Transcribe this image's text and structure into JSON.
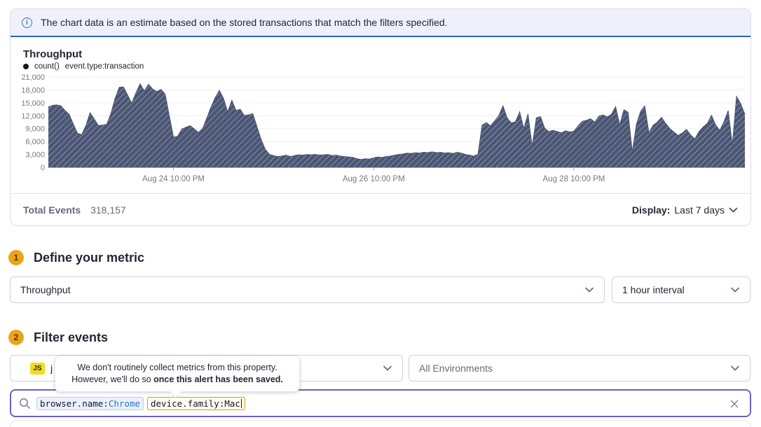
{
  "banner": {
    "text": "The chart data is an estimate based on the stored transactions that match the filters specified."
  },
  "chart": {
    "title": "Throughput",
    "legend_aggregate": "count()",
    "legend_filter": "event.type:transaction"
  },
  "chart_data": {
    "type": "area",
    "title": "Throughput",
    "series_name": "count() event.type:transaction",
    "ylim": [
      0,
      21000
    ],
    "yticks": [
      0,
      3000,
      6000,
      9000,
      12000,
      15000,
      18000,
      21000
    ],
    "ytick_labels": [
      "0",
      "3,000",
      "6,000",
      "9,000",
      "12,000",
      "15,000",
      "18,000",
      "21,000"
    ],
    "xticks": [
      {
        "label": "Aug 24 10:00 PM",
        "index": 30
      },
      {
        "label": "Aug 26 10:00 PM",
        "index": 78
      },
      {
        "label": "Aug 28 10:00 PM",
        "index": 126
      }
    ],
    "x_unit": "1 hour interval over last 7 days",
    "grid": true,
    "fill_style": "diagonal-hatch",
    "fill_color": "#4a5674",
    "hatch_color": "#b7bccb",
    "values": [
      14000,
      14400,
      14500,
      14300,
      13200,
      12300,
      10000,
      7900,
      7600,
      9700,
      12700,
      11200,
      9700,
      9800,
      10000,
      12500,
      16000,
      18600,
      18700,
      16800,
      14900,
      17300,
      19400,
      17800,
      19300,
      18200,
      17600,
      18100,
      17000,
      12000,
      7000,
      7200,
      8900,
      9300,
      9700,
      8900,
      8100,
      9000,
      11500,
      14000,
      16200,
      17900,
      16000,
      12900,
      15600,
      13200,
      13500,
      12000,
      12200,
      12500,
      9500,
      6500,
      4200,
      3000,
      2700,
      2500,
      2600,
      2800,
      2500,
      2700,
      2900,
      2800,
      3000,
      2900,
      3000,
      2800,
      2900,
      3000,
      2700,
      2800,
      2600,
      2500,
      2400,
      2300,
      2000,
      1800,
      2000,
      1900,
      2200,
      2400,
      2300,
      2500,
      2600,
      2800,
      3000,
      3100,
      3300,
      3200,
      3400,
      3300,
      3500,
      3400,
      3600,
      3400,
      3500,
      3300,
      3400,
      3200,
      3500,
      3300,
      3000,
      2800,
      2600,
      3000,
      9800,
      10400,
      9600,
      10800,
      12000,
      14300,
      11500,
      10300,
      10600,
      12900,
      9000,
      12400,
      4900,
      11500,
      11800,
      9100,
      8300,
      8600,
      8300,
      8000,
      8500,
      8200,
      8400,
      9600,
      10700,
      10900,
      11300,
      10500,
      11900,
      12200,
      11700,
      12300,
      14100,
      9900,
      13400,
      12800,
      3600,
      10000,
      13000,
      14300,
      8000,
      9800,
      10500,
      11600,
      10200,
      9000,
      8200,
      7400,
      8000,
      8800,
      7500,
      6600,
      8300,
      9400,
      10200,
      12100,
      9800,
      8600,
      10600,
      13200,
      5200,
      16500,
      14800,
      12300
    ]
  },
  "summary": {
    "total_events_label": "Total Events",
    "total_events_value": "318,157",
    "display_label": "Display:",
    "display_value": "Last 7 days"
  },
  "steps": {
    "step1_number": "1",
    "step1_title": "Define your metric",
    "step2_number": "2",
    "step2_title": "Filter events"
  },
  "metric": {
    "aggregate": "Throughput",
    "interval": "1 hour interval"
  },
  "filters": {
    "project_badge": "JS",
    "project_visible_text": "j",
    "environment": "All Environments"
  },
  "search": {
    "tokens": [
      {
        "key": "browser.name:",
        "value": "Chrome"
      },
      {
        "key": "device.family:",
        "value": "Mac"
      }
    ]
  },
  "tooltip": {
    "line1": "We don't routinely collect metrics from this property.",
    "line2_normal": "However, we'll do so ",
    "line2_bold": "once this alert has been saved."
  },
  "colors": {
    "accent_purple": "#6c5fc7",
    "banner_border_blue": "#2f62b5",
    "step_badge_amber": "#eba417",
    "area_fill": "#4a5674",
    "token_blue_border": "#b3cfea",
    "token_amber_border": "#d9a300"
  }
}
